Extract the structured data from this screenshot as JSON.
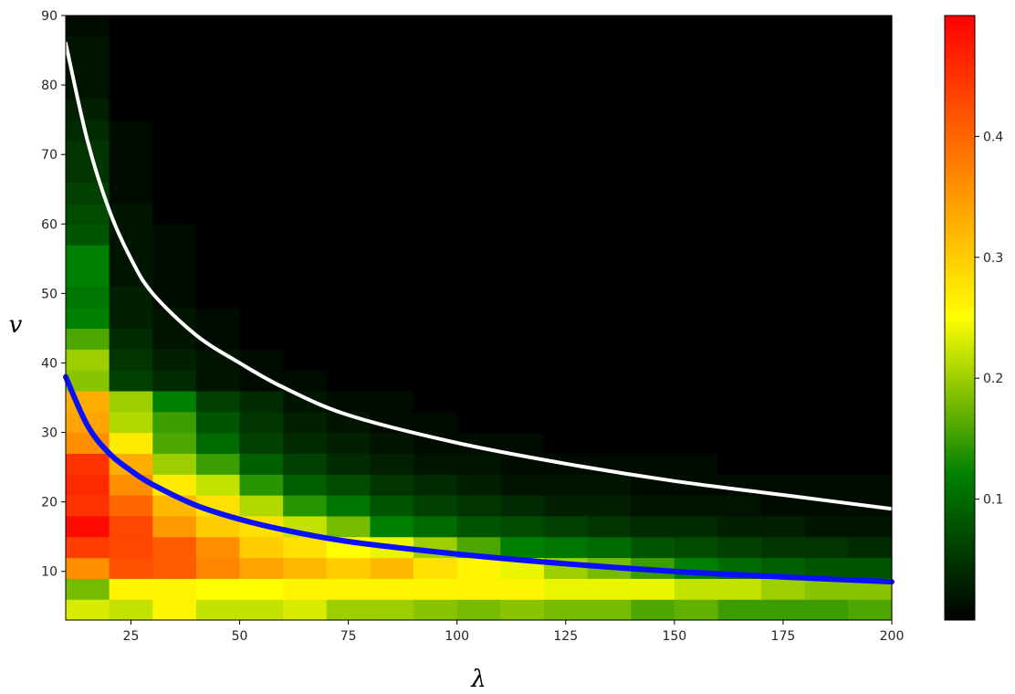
{
  "chart_data": {
    "type": "heatmap",
    "title": "",
    "xlabel": "λ",
    "ylabel": "v",
    "xlim": [
      10,
      200
    ],
    "ylim": [
      3,
      90
    ],
    "x_ticks": [
      25,
      50,
      75,
      100,
      125,
      150,
      175,
      200
    ],
    "y_ticks": [
      10,
      20,
      30,
      40,
      50,
      60,
      70,
      80,
      90
    ],
    "x_bins": [
      10,
      20,
      30,
      40,
      50,
      60,
      70,
      80,
      90,
      100,
      110,
      120,
      130,
      140,
      150,
      160,
      170,
      180,
      190,
      200
    ],
    "y_bins": [
      3,
      6,
      9,
      12,
      15,
      18,
      21,
      24,
      27,
      30,
      33,
      36,
      39,
      42,
      45,
      48,
      51,
      54,
      57,
      60,
      63,
      66,
      69,
      72,
      75,
      78,
      81,
      84,
      87,
      90
    ],
    "z": [
      [
        0.23,
        0.22,
        0.26,
        0.22,
        0.22,
        0.23,
        0.2,
        0.2,
        0.19,
        0.18,
        0.19,
        0.18,
        0.18,
        0.16,
        0.17,
        0.15,
        0.15,
        0.15,
        0.16
      ],
      [
        0.18,
        0.26,
        0.26,
        0.25,
        0.25,
        0.26,
        0.26,
        0.26,
        0.26,
        0.26,
        0.26,
        0.24,
        0.24,
        0.24,
        0.22,
        0.22,
        0.2,
        0.19,
        0.19
      ],
      [
        0.36,
        0.42,
        0.41,
        0.37,
        0.34,
        0.32,
        0.3,
        0.32,
        0.28,
        0.26,
        0.24,
        0.2,
        0.18,
        0.15,
        0.12,
        0.1,
        0.09,
        0.08,
        0.08
      ],
      [
        0.44,
        0.43,
        0.41,
        0.36,
        0.3,
        0.28,
        0.25,
        0.24,
        0.2,
        0.16,
        0.12,
        0.11,
        0.1,
        0.08,
        0.07,
        0.06,
        0.05,
        0.05,
        0.04
      ],
      [
        0.49,
        0.43,
        0.35,
        0.3,
        0.28,
        0.22,
        0.18,
        0.12,
        0.1,
        0.08,
        0.07,
        0.06,
        0.05,
        0.04,
        0.04,
        0.03,
        0.03,
        0.02,
        0.02
      ],
      [
        0.45,
        0.4,
        0.32,
        0.28,
        0.21,
        0.14,
        0.11,
        0.08,
        0.06,
        0.05,
        0.04,
        0.03,
        0.03,
        0.02,
        0.02,
        0.02,
        0.01,
        0.01,
        0.01
      ],
      [
        0.46,
        0.36,
        0.27,
        0.22,
        0.14,
        0.09,
        0.07,
        0.05,
        0.04,
        0.03,
        0.02,
        0.02,
        0.02,
        0.01,
        0.01,
        0.01,
        0.01,
        0.01,
        0.01
      ],
      [
        0.45,
        0.33,
        0.2,
        0.15,
        0.09,
        0.06,
        0.04,
        0.03,
        0.02,
        0.02,
        0.01,
        0.01,
        0.01,
        0.01,
        0.01,
        0.0,
        0.0,
        0.0,
        0.0
      ],
      [
        0.36,
        0.27,
        0.16,
        0.1,
        0.06,
        0.04,
        0.03,
        0.02,
        0.01,
        0.01,
        0.01,
        0.0,
        0.0,
        0.0,
        0.0,
        0.0,
        0.0,
        0.0,
        0.0
      ],
      [
        0.34,
        0.21,
        0.15,
        0.08,
        0.05,
        0.03,
        0.02,
        0.01,
        0.01,
        0.0,
        0.0,
        0.0,
        0.0,
        0.0,
        0.0,
        0.0,
        0.0,
        0.0,
        0.0
      ],
      [
        0.33,
        0.2,
        0.12,
        0.06,
        0.04,
        0.02,
        0.01,
        0.01,
        0.0,
        0.0,
        0.0,
        0.0,
        0.0,
        0.0,
        0.0,
        0.0,
        0.0,
        0.0,
        0.0
      ],
      [
        0.19,
        0.06,
        0.04,
        0.02,
        0.01,
        0.01,
        0.0,
        0.0,
        0.0,
        0.0,
        0.0,
        0.0,
        0.0,
        0.0,
        0.0,
        0.0,
        0.0,
        0.0,
        0.0
      ],
      [
        0.2,
        0.05,
        0.03,
        0.02,
        0.01,
        0.0,
        0.0,
        0.0,
        0.0,
        0.0,
        0.0,
        0.0,
        0.0,
        0.0,
        0.0,
        0.0,
        0.0,
        0.0,
        0.0
      ],
      [
        0.16,
        0.04,
        0.02,
        0.01,
        0.0,
        0.0,
        0.0,
        0.0,
        0.0,
        0.0,
        0.0,
        0.0,
        0.0,
        0.0,
        0.0,
        0.0,
        0.0,
        0.0,
        0.0
      ],
      [
        0.12,
        0.03,
        0.02,
        0.01,
        0.0,
        0.0,
        0.0,
        0.0,
        0.0,
        0.0,
        0.0,
        0.0,
        0.0,
        0.0,
        0.0,
        0.0,
        0.0,
        0.0,
        0.0
      ],
      [
        0.11,
        0.03,
        0.01,
        0.0,
        0.0,
        0.0,
        0.0,
        0.0,
        0.0,
        0.0,
        0.0,
        0.0,
        0.0,
        0.0,
        0.0,
        0.0,
        0.0,
        0.0,
        0.0
      ],
      [
        0.12,
        0.02,
        0.01,
        0.0,
        0.0,
        0.0,
        0.0,
        0.0,
        0.0,
        0.0,
        0.0,
        0.0,
        0.0,
        0.0,
        0.0,
        0.0,
        0.0,
        0.0,
        0.0
      ],
      [
        0.12,
        0.02,
        0.01,
        0.0,
        0.0,
        0.0,
        0.0,
        0.0,
        0.0,
        0.0,
        0.0,
        0.0,
        0.0,
        0.0,
        0.0,
        0.0,
        0.0,
        0.0,
        0.0
      ],
      [
        0.08,
        0.02,
        0.01,
        0.0,
        0.0,
        0.0,
        0.0,
        0.0,
        0.0,
        0.0,
        0.0,
        0.0,
        0.0,
        0.0,
        0.0,
        0.0,
        0.0,
        0.0,
        0.0
      ],
      [
        0.07,
        0.02,
        0.0,
        0.0,
        0.0,
        0.0,
        0.0,
        0.0,
        0.0,
        0.0,
        0.0,
        0.0,
        0.0,
        0.0,
        0.0,
        0.0,
        0.0,
        0.0,
        0.0
      ],
      [
        0.06,
        0.01,
        0.0,
        0.0,
        0.0,
        0.0,
        0.0,
        0.0,
        0.0,
        0.0,
        0.0,
        0.0,
        0.0,
        0.0,
        0.0,
        0.0,
        0.0,
        0.0,
        0.0
      ],
      [
        0.05,
        0.01,
        0.0,
        0.0,
        0.0,
        0.0,
        0.0,
        0.0,
        0.0,
        0.0,
        0.0,
        0.0,
        0.0,
        0.0,
        0.0,
        0.0,
        0.0,
        0.0,
        0.0
      ],
      [
        0.05,
        0.01,
        0.0,
        0.0,
        0.0,
        0.0,
        0.0,
        0.0,
        0.0,
        0.0,
        0.0,
        0.0,
        0.0,
        0.0,
        0.0,
        0.0,
        0.0,
        0.0,
        0.0
      ],
      [
        0.04,
        0.01,
        0.0,
        0.0,
        0.0,
        0.0,
        0.0,
        0.0,
        0.0,
        0.0,
        0.0,
        0.0,
        0.0,
        0.0,
        0.0,
        0.0,
        0.0,
        0.0,
        0.0
      ],
      [
        0.03,
        0.0,
        0.0,
        0.0,
        0.0,
        0.0,
        0.0,
        0.0,
        0.0,
        0.0,
        0.0,
        0.0,
        0.0,
        0.0,
        0.0,
        0.0,
        0.0,
        0.0,
        0.0
      ],
      [
        0.02,
        0.0,
        0.0,
        0.0,
        0.0,
        0.0,
        0.0,
        0.0,
        0.0,
        0.0,
        0.0,
        0.0,
        0.0,
        0.0,
        0.0,
        0.0,
        0.0,
        0.0,
        0.0
      ],
      [
        0.02,
        0.0,
        0.0,
        0.0,
        0.0,
        0.0,
        0.0,
        0.0,
        0.0,
        0.0,
        0.0,
        0.0,
        0.0,
        0.0,
        0.0,
        0.0,
        0.0,
        0.0,
        0.0
      ],
      [
        0.02,
        0.0,
        0.0,
        0.0,
        0.0,
        0.0,
        0.0,
        0.0,
        0.0,
        0.0,
        0.0,
        0.0,
        0.0,
        0.0,
        0.0,
        0.0,
        0.0,
        0.0,
        0.0
      ],
      [
        0.01,
        0.0,
        0.0,
        0.0,
        0.0,
        0.0,
        0.0,
        0.0,
        0.0,
        0.0,
        0.0,
        0.0,
        0.0,
        0.0,
        0.0,
        0.0,
        0.0,
        0.0,
        0.0
      ]
    ],
    "curves": [
      {
        "color": "#ffffff",
        "points": [
          [
            10,
            86
          ],
          [
            15,
            72
          ],
          [
            20,
            62
          ],
          [
            25,
            55
          ],
          [
            30,
            50
          ],
          [
            40,
            44
          ],
          [
            50,
            40
          ],
          [
            60,
            36.5
          ],
          [
            75,
            32.5
          ],
          [
            100,
            28.5
          ],
          [
            125,
            25.5
          ],
          [
            150,
            23
          ],
          [
            175,
            21
          ],
          [
            200,
            19
          ]
        ]
      },
      {
        "color": "#0a10ff",
        "points": [
          [
            10,
            38
          ],
          [
            15,
            31
          ],
          [
            20,
            27
          ],
          [
            25,
            24.5
          ],
          [
            30,
            22.5
          ],
          [
            40,
            19.5
          ],
          [
            50,
            17.5
          ],
          [
            60,
            16
          ],
          [
            75,
            14.3
          ],
          [
            100,
            12.5
          ],
          [
            125,
            11.1
          ],
          [
            150,
            10
          ],
          [
            175,
            9.2
          ],
          [
            200,
            8.5
          ]
        ]
      }
    ],
    "colorbar": {
      "range": [
        0.0,
        0.5
      ],
      "ticks": [
        0.1,
        0.2,
        0.3,
        0.4
      ],
      "stops": [
        {
          "v": 0.0,
          "color": "#000000"
        },
        {
          "v": 0.12,
          "color": "#008000"
        },
        {
          "v": 0.25,
          "color": "#ffff00"
        },
        {
          "v": 0.5,
          "color": "#ff0000"
        }
      ]
    }
  }
}
